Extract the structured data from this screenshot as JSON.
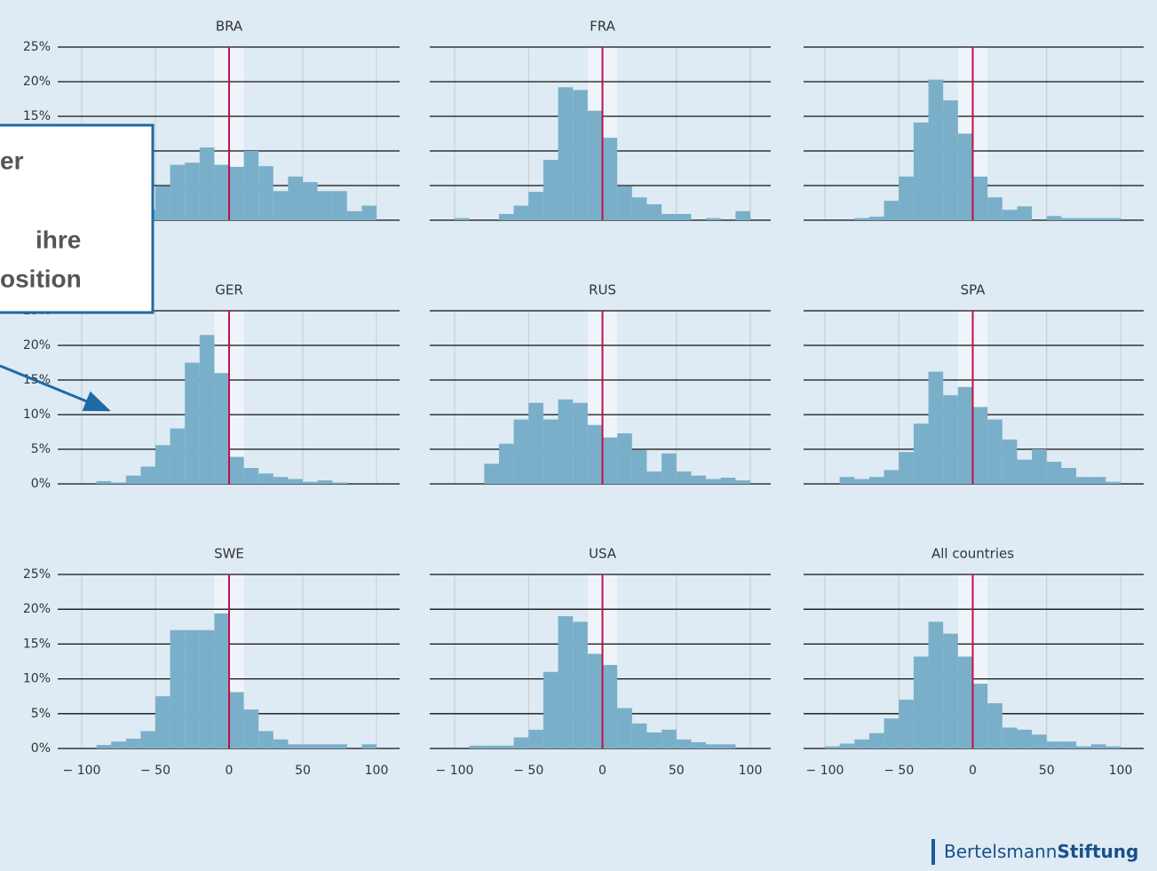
{
  "chart_data": [
    {
      "type": "histogram",
      "title": "BRA",
      "color": "#7aafc9",
      "bins": [
        -100,
        -90,
        -80,
        -70,
        -60,
        -50,
        -40,
        -30,
        -20,
        -10,
        0,
        10,
        20,
        30,
        40,
        50,
        60,
        70,
        80,
        90,
        100
      ],
      "values": [
        0,
        0,
        0.3,
        0.8,
        1.5,
        4.9,
        8,
        8.3,
        10.5,
        8,
        7.7,
        10,
        7.8,
        4.2,
        6.3,
        5.5,
        4.2,
        4.2,
        1.3,
        2.1
      ],
      "xlim": [
        -100,
        100
      ],
      "ylim": [
        0,
        25
      ],
      "xticks": [
        -100,
        -50,
        0,
        50,
        100
      ],
      "yticks": [
        {
          "value": 0,
          "label": "0%"
        },
        {
          "value": 5,
          "label": "5%"
        },
        {
          "value": 10,
          "label": "10%"
        },
        {
          "value": 15,
          "label": "15%"
        },
        {
          "value": 20,
          "label": "20%"
        },
        {
          "value": 25,
          "label": "25%"
        }
      ],
      "band": [
        -10,
        10
      ],
      "reference_line": 0
    },
    {
      "type": "histogram",
      "title": "FRA",
      "color": "#7aafc9",
      "bins": [
        -100,
        -90,
        -80,
        -70,
        -60,
        -50,
        -40,
        -30,
        -20,
        -10,
        0,
        10,
        20,
        30,
        40,
        50,
        60,
        70,
        80,
        90,
        100
      ],
      "values": [
        0.3,
        0,
        0,
        0.9,
        2.1,
        4.1,
        8.7,
        19.2,
        18.8,
        15.8,
        11.9,
        4.9,
        3.3,
        2.3,
        0.9,
        0.9,
        0,
        0.3,
        0,
        1.3
      ],
      "xlim": [
        -100,
        100
      ],
      "ylim": [
        0,
        25
      ],
      "xticks": [
        -100,
        -50,
        0,
        50,
        100
      ],
      "yticks": [
        0,
        5,
        10,
        15,
        20,
        25
      ],
      "band": [
        -10,
        10
      ],
      "reference_line": 0
    },
    {
      "type": "histogram",
      "color": "#7aafc9",
      "bins": [
        -100,
        -90,
        -80,
        -70,
        -60,
        -50,
        -40,
        -30,
        -20,
        -10,
        0,
        10,
        20,
        30,
        40,
        50,
        60,
        70,
        80,
        90,
        100
      ],
      "values": [
        0,
        0,
        0.3,
        0.5,
        2.8,
        6.3,
        14.1,
        20.3,
        17.3,
        12.5,
        6.3,
        3.3,
        1.5,
        2,
        0,
        0.6,
        0.3,
        0.3,
        0.3,
        0.3
      ],
      "xlim": [
        -100,
        100
      ],
      "ylim": [
        0,
        25
      ],
      "xticks": [
        -100,
        -50,
        0,
        50,
        100
      ],
      "yticks": [
        0,
        5,
        10,
        15,
        20,
        25
      ],
      "band": [
        -10,
        10
      ],
      "reference_line": 0
    },
    {
      "type": "histogram",
      "title": "GER",
      "color": "#7aafc9",
      "bins": [
        -100,
        -90,
        -80,
        -70,
        -60,
        -50,
        -40,
        -30,
        -20,
        -10,
        0,
        10,
        20,
        30,
        40,
        50,
        60,
        70,
        80,
        90,
        100
      ],
      "values": [
        0,
        0.4,
        0.2,
        1.2,
        2.5,
        5.6,
        8,
        17.5,
        21.5,
        16,
        3.9,
        2.3,
        1.5,
        1,
        0.7,
        0.3,
        0.5,
        0.2,
        0,
        0
      ],
      "xlim": [
        -100,
        100
      ],
      "ylim": [
        0,
        25
      ],
      "xticks": [
        -100,
        -50,
        0,
        50,
        100
      ],
      "yticks": [
        {
          "value": 0,
          "label": "0%"
        },
        {
          "value": 5,
          "label": "5%"
        },
        {
          "value": 10,
          "label": "10%"
        },
        {
          "value": 15,
          "label": "15%"
        },
        {
          "value": 20,
          "label": "20%"
        },
        {
          "value": 25,
          "label": "25%"
        }
      ],
      "band": [
        -10,
        10
      ],
      "reference_line": 0
    },
    {
      "type": "histogram",
      "title": "RUS",
      "color": "#7aafc9",
      "bins": [
        -100,
        -90,
        -80,
        -70,
        -60,
        -50,
        -40,
        -30,
        -20,
        -10,
        0,
        10,
        20,
        30,
        40,
        50,
        60,
        70,
        80,
        90,
        100
      ],
      "values": [
        0,
        0,
        2.9,
        5.8,
        9.3,
        11.7,
        9.3,
        12.2,
        11.7,
        8.5,
        6.7,
        7.3,
        4.9,
        1.8,
        4.4,
        1.8,
        1.2,
        0.7,
        0.9,
        0.5
      ],
      "xlim": [
        -100,
        100
      ],
      "ylim": [
        0,
        25
      ],
      "xticks": [
        -100,
        -50,
        0,
        50,
        100
      ],
      "yticks": [
        0,
        5,
        10,
        15,
        20,
        25
      ],
      "band": [
        -10,
        10
      ],
      "reference_line": 0
    },
    {
      "type": "histogram",
      "title": "SPA",
      "color": "#7aafc9",
      "bins": [
        -100,
        -90,
        -80,
        -70,
        -60,
        -50,
        -40,
        -30,
        -20,
        -10,
        0,
        10,
        20,
        30,
        40,
        50,
        60,
        70,
        80,
        90,
        100
      ],
      "values": [
        0,
        1,
        0.7,
        1,
        2,
        4.6,
        8.7,
        16.2,
        12.8,
        14,
        11.1,
        9.3,
        6.4,
        3.5,
        5,
        3.2,
        2.3,
        1,
        1,
        0.3
      ],
      "xlim": [
        -100,
        100
      ],
      "ylim": [
        0,
        25
      ],
      "xticks": [
        -100,
        -50,
        0,
        50,
        100
      ],
      "yticks": [
        0,
        5,
        10,
        15,
        20,
        25
      ],
      "band": [
        -10,
        10
      ],
      "reference_line": 0
    },
    {
      "type": "histogram",
      "title": "SWE",
      "color": "#7aafc9",
      "bins": [
        -100,
        -90,
        -80,
        -70,
        -60,
        -50,
        -40,
        -30,
        -20,
        -10,
        0,
        10,
        20,
        30,
        40,
        50,
        60,
        70,
        80,
        90,
        100
      ],
      "values": [
        0,
        0.5,
        1,
        1.4,
        2.5,
        7.5,
        17,
        17,
        17,
        19.4,
        8.1,
        5.6,
        2.5,
        1.3,
        0.6,
        0.6,
        0.6,
        0.6,
        0,
        0.6
      ],
      "xlim": [
        -100,
        100
      ],
      "ylim": [
        0,
        25
      ],
      "xticks": [
        {
          "value": -100,
          "label": "− 100"
        },
        {
          "value": -50,
          "label": "− 50"
        },
        0,
        50,
        100
      ],
      "yticks": [
        {
          "value": 0,
          "label": "0%"
        },
        {
          "value": 5,
          "label": "5%"
        },
        {
          "value": 10,
          "label": "10%"
        },
        {
          "value": 15,
          "label": "15%"
        },
        {
          "value": 20,
          "label": "20%"
        },
        {
          "value": 25,
          "label": "25%"
        }
      ],
      "band": [
        -10,
        10
      ],
      "reference_line": 0
    },
    {
      "type": "histogram",
      "title": "USA",
      "color": "#7aafc9",
      "bins": [
        -100,
        -90,
        -80,
        -70,
        -60,
        -50,
        -40,
        -30,
        -20,
        -10,
        0,
        10,
        20,
        30,
        40,
        50,
        60,
        70,
        80,
        90,
        100
      ],
      "values": [
        0,
        0.4,
        0.4,
        0.4,
        1.6,
        2.7,
        11,
        19,
        18.2,
        13.6,
        12,
        5.8,
        3.6,
        2.3,
        2.7,
        1.3,
        0.9,
        0.6,
        0.6,
        0
      ],
      "xlim": [
        -100,
        100
      ],
      "ylim": [
        0,
        25
      ],
      "xticks": [
        {
          "value": -100,
          "label": "− 100"
        },
        {
          "value": -50,
          "label": "− 50"
        },
        0,
        50,
        100
      ],
      "yticks": [
        0,
        5,
        10,
        15,
        20,
        25
      ],
      "band": [
        -10,
        10
      ],
      "reference_line": 0
    },
    {
      "type": "histogram",
      "title": "All countries",
      "color": "#7aafc9",
      "bins": [
        -100,
        -90,
        -80,
        -70,
        -60,
        -50,
        -40,
        -30,
        -20,
        -10,
        0,
        10,
        20,
        30,
        40,
        50,
        60,
        70,
        80,
        90,
        100
      ],
      "values": [
        0.3,
        0.7,
        1.3,
        2.2,
        4.3,
        7,
        13.2,
        18.2,
        16.5,
        13.2,
        9.3,
        6.5,
        3,
        2.7,
        2,
        1,
        1,
        0.3,
        0.6,
        0.3
      ],
      "xlim": [
        -100,
        100
      ],
      "ylim": [
        0,
        25
      ],
      "xticks": [
        {
          "value": -100,
          "label": "− 100"
        },
        {
          "value": -50,
          "label": "− 50"
        },
        0,
        50,
        100
      ],
      "yticks": [
        0,
        5,
        10,
        15,
        20,
        25
      ],
      "band": [
        -10,
        10
      ],
      "reference_line": 0
    }
  ],
  "annotation": {
    "lines": [
      "er",
      "ihre",
      "osition"
    ]
  },
  "logo": {
    "light": "Bertelsmann",
    "bold": "Stiftung"
  }
}
